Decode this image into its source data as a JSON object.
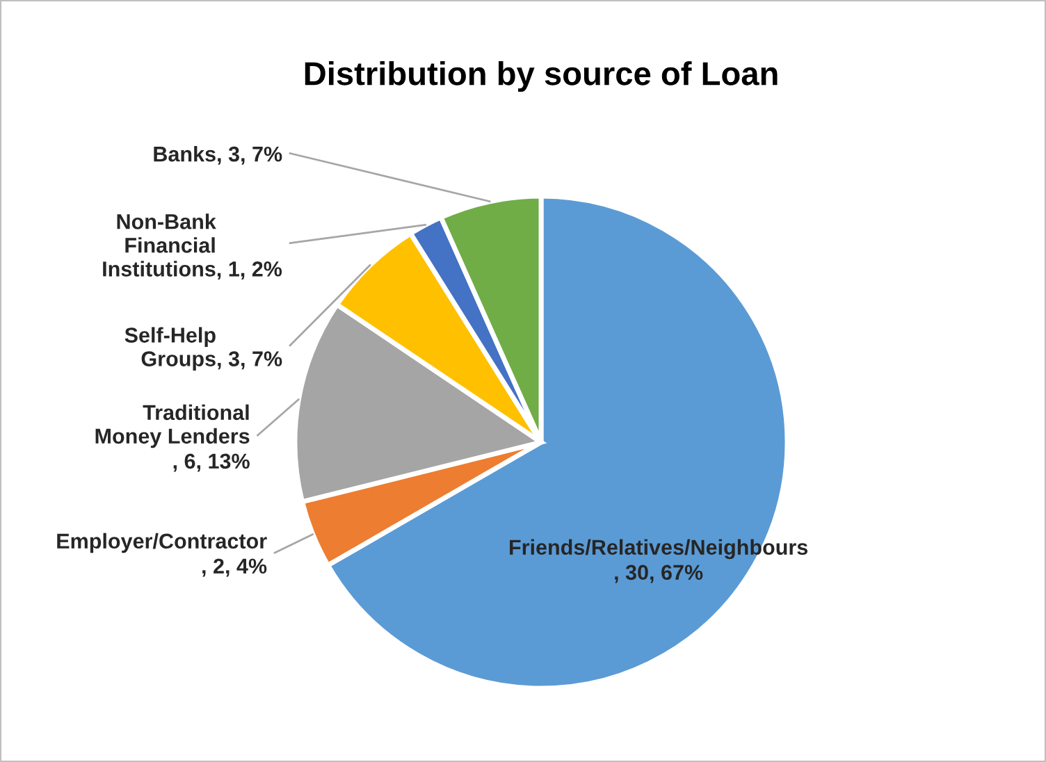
{
  "chart_data": {
    "type": "pie",
    "title": "Distribution by source of Loan",
    "categories": [
      "Friends/Relatives/Neighbours",
      "Employer/Contractor",
      "Traditional Money Lenders",
      "Self-Help Groups",
      "Non-Bank Financial Institutions",
      "Banks"
    ],
    "values": [
      30,
      2,
      6,
      3,
      1,
      3
    ],
    "value_labels": [
      ", 30, 67%",
      ", 2, 4%",
      ", 6, 13%",
      ", 3, 7%",
      ", 1, 2%",
      ", 3, 7%"
    ],
    "colors": [
      "#5b9bd5",
      "#ed7d31",
      "#a5a5a5",
      "#ffc000",
      "#4472c4",
      "#70ad47"
    ],
    "legend": false
  }
}
